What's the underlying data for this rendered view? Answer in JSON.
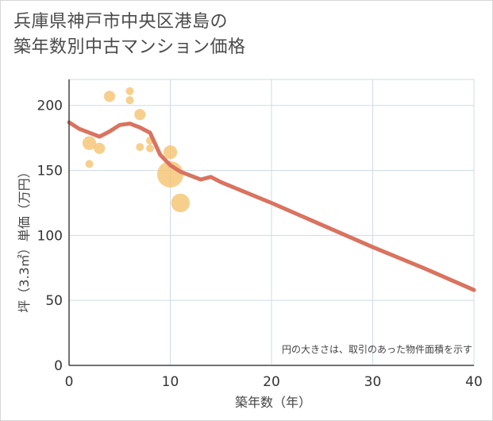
{
  "title_line1": "兵庫県神戸市中央区港島の",
  "title_line2": "築年数別中古マンション価格",
  "chart_data": {
    "type": "scatter",
    "xlabel": "築年数（年）",
    "ylabel": "坪（3.3㎡）単価（万円）",
    "xlim": [
      0,
      40
    ],
    "ylim": [
      0,
      220
    ],
    "x_ticks": [
      0,
      10,
      20,
      30,
      40
    ],
    "y_ticks": [
      0,
      50,
      100,
      150,
      200
    ],
    "grid": true,
    "note": "円の大きさは、取引のあった物件面積を示す",
    "bubbles": [
      {
        "x": 2,
        "y": 171,
        "size": 3.0
      },
      {
        "x": 2,
        "y": 155,
        "size": 1.0
      },
      {
        "x": 3,
        "y": 167,
        "size": 2.0
      },
      {
        "x": 4,
        "y": 207,
        "size": 2.0
      },
      {
        "x": 6,
        "y": 211,
        "size": 1.0
      },
      {
        "x": 6,
        "y": 204,
        "size": 1.0
      },
      {
        "x": 7,
        "y": 193,
        "size": 2.0
      },
      {
        "x": 7,
        "y": 168,
        "size": 1.0
      },
      {
        "x": 8,
        "y": 173,
        "size": 1.0
      },
      {
        "x": 8,
        "y": 167,
        "size": 1.0
      },
      {
        "x": 10,
        "y": 164,
        "size": 3.0
      },
      {
        "x": 10,
        "y": 147,
        "size": 11.0
      },
      {
        "x": 11,
        "y": 125,
        "size": 5.5
      }
    ],
    "trend_line": {
      "x": [
        0,
        1,
        2,
        3,
        4,
        5,
        6,
        7,
        8,
        9,
        10,
        11,
        12,
        13,
        14,
        15,
        20,
        25,
        30,
        35,
        40
      ],
      "y": [
        187,
        182,
        179,
        176,
        180,
        185,
        186,
        183,
        179,
        162,
        154,
        149,
        146,
        143,
        145,
        141,
        125,
        108,
        91,
        75,
        58
      ]
    },
    "colors": {
      "bubble": "#f5c371",
      "trend_line": "#d9735f",
      "grid": "#cfdbe3",
      "axis": "#444444"
    }
  }
}
